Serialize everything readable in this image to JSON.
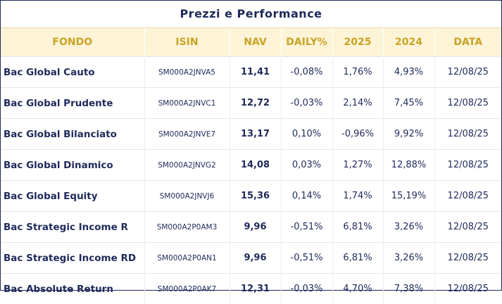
{
  "title": "Prezzi e Performance",
  "columns": [
    "FONDO",
    "ISIN",
    "NAV",
    "DAILY%",
    "2025",
    "2024",
    "DATA"
  ],
  "rows": [
    {
      "fondo": "Bac Global Cauto",
      "isin": "SM000A2JNVA5",
      "nav": "11,41",
      "daily": "-0,08%",
      "y2025": "1,76%",
      "y2024": "4,93%",
      "data": "12/08/25"
    },
    {
      "fondo": "Bac Global Prudente",
      "isin": "SM000A2JNVC1",
      "nav": "12,72",
      "daily": "-0,03%",
      "y2025": "2,14%",
      "y2024": "7,45%",
      "data": "12/08/25"
    },
    {
      "fondo": "Bac Global Bilanciato",
      "isin": "SM000A2JNVE7",
      "nav": "13,17",
      "daily": "0,10%",
      "y2025": "-0,96%",
      "y2024": "9,92%",
      "data": "12/08/25"
    },
    {
      "fondo": "Bac Global Dinamico",
      "isin": "SM000A2JNVG2",
      "nav": "14,08",
      "daily": "0,03%",
      "y2025": "1,27%",
      "y2024": "12,88%",
      "data": "12/08/25"
    },
    {
      "fondo": "Bac Global Equity",
      "isin": "SM000A2JNVJ6",
      "nav": "15,36",
      "daily": "0,14%",
      "y2025": "1,74%",
      "y2024": "15,19%",
      "data": "12/08/25"
    },
    {
      "fondo": "Bac Strategic Income R",
      "isin": "SM000A2P0AM3",
      "nav": "9,96",
      "daily": "-0,51%",
      "y2025": "6,81%",
      "y2024": "3,26%",
      "data": "12/08/25"
    },
    {
      "fondo": "Bac Strategic Income RD",
      "isin": "SM000A2P0AN1",
      "nav": "9,96",
      "daily": "-0,51%",
      "y2025": "6,81%",
      "y2024": "3,26%",
      "data": "12/08/25"
    },
    {
      "fondo": "Bac Absolute Return",
      "isin": "SM000A2P0AK7",
      "nav": "12,31",
      "daily": "-0,03%",
      "y2025": "4,70%",
      "y2024": "7,38%",
      "data": "12/08/25"
    }
  ]
}
